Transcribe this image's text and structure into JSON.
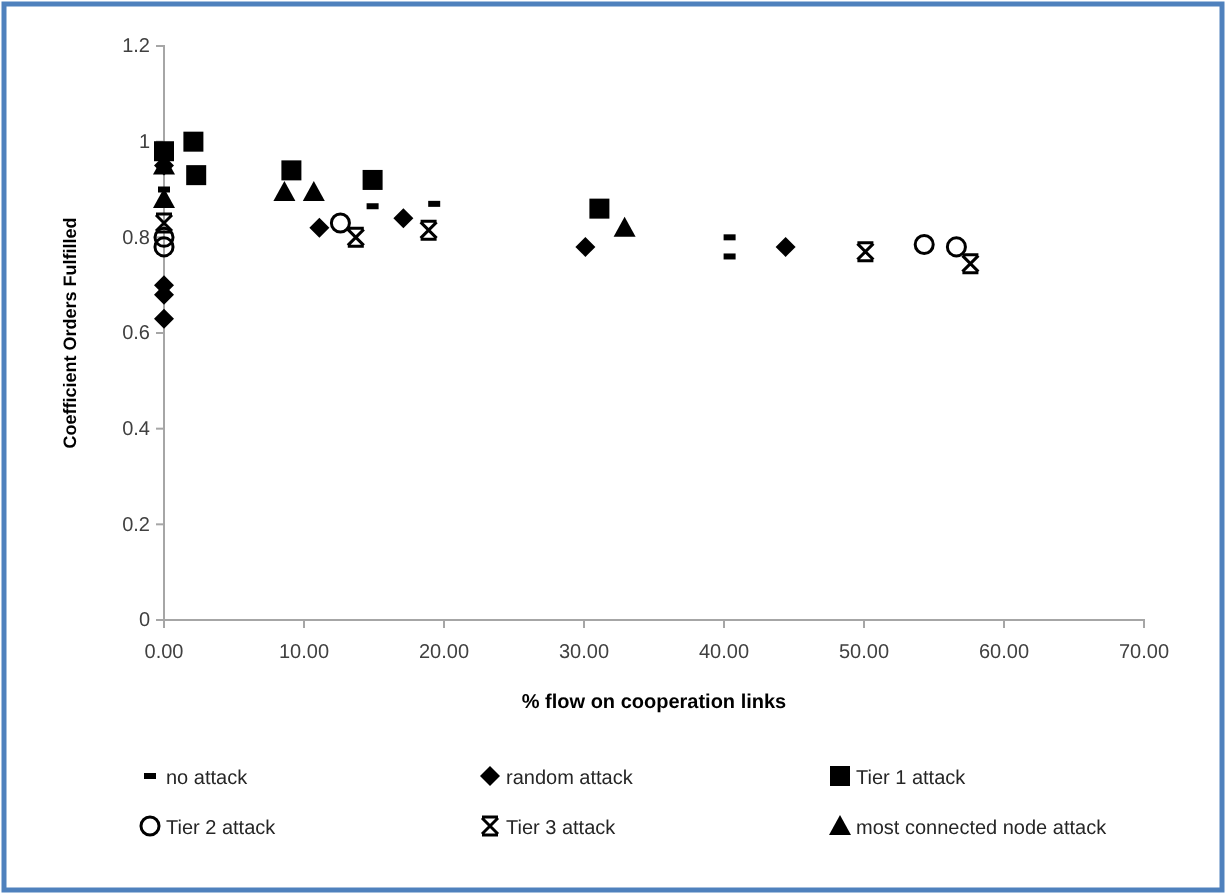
{
  "chart_data": {
    "type": "scatter",
    "xlabel": "% flow on cooperation links",
    "ylabel": "Coefficient Orders Fulfilled",
    "xlim": [
      0,
      70
    ],
    "ylim": [
      0,
      1.2
    ],
    "xticks": [
      {
        "value": 0,
        "label": "0.00"
      },
      {
        "value": 10,
        "label": "10.00"
      },
      {
        "value": 20,
        "label": "20.00"
      },
      {
        "value": 30,
        "label": "30.00"
      },
      {
        "value": 40,
        "label": "40.00"
      },
      {
        "value": 50,
        "label": "50.00"
      },
      {
        "value": 60,
        "label": "60.00"
      },
      {
        "value": 70,
        "label": "70.00"
      }
    ],
    "yticks": [
      0,
      0.2,
      0.4,
      0.6,
      0.8,
      1,
      1.2
    ],
    "grid": false,
    "legend": "bottom",
    "series": [
      {
        "name": "no attack",
        "color": "#000000",
        "x": [
          0,
          14.9,
          19.3,
          40.4,
          40.4
        ],
        "values": [
          0.9,
          0.865,
          0.87,
          0.8,
          0.76
        ]
      },
      {
        "name": "random attack",
        "color": "#000000",
        "marker": "diamond",
        "x": [
          0,
          0,
          0,
          0,
          11.1,
          17.1,
          30.1,
          44.4
        ],
        "values": [
          0.63,
          0.68,
          0.7,
          0.95,
          0.82,
          0.84,
          0.78,
          0.78
        ]
      },
      {
        "name": "Tier 1 attack",
        "color": "#000000",
        "marker": "square",
        "x": [
          0,
          2.1,
          2.3,
          9.1,
          14.9,
          31.1
        ],
        "values": [
          0.98,
          1.0,
          0.93,
          0.94,
          0.92,
          0.86
        ]
      },
      {
        "name": "Tier 2 attack",
        "color": "#000000",
        "marker": "circle",
        "x": [
          0,
          0,
          12.6,
          54.3,
          56.6
        ],
        "values": [
          0.8,
          0.78,
          0.83,
          0.785,
          0.78
        ]
      },
      {
        "name": "Tier 3 attack",
        "color": "#000000",
        "marker": "cross",
        "x": [
          0,
          13.7,
          18.9,
          50.1,
          57.6
        ],
        "values": [
          0.83,
          0.8,
          0.815,
          0.77,
          0.745
        ]
      },
      {
        "name": "most connected node attack",
        "color": "#000000",
        "marker": "triangle",
        "x": [
          0,
          0,
          8.6,
          10.7,
          32.9
        ],
        "values": [
          0.88,
          0.95,
          0.895,
          0.895,
          0.82
        ]
      }
    ]
  }
}
